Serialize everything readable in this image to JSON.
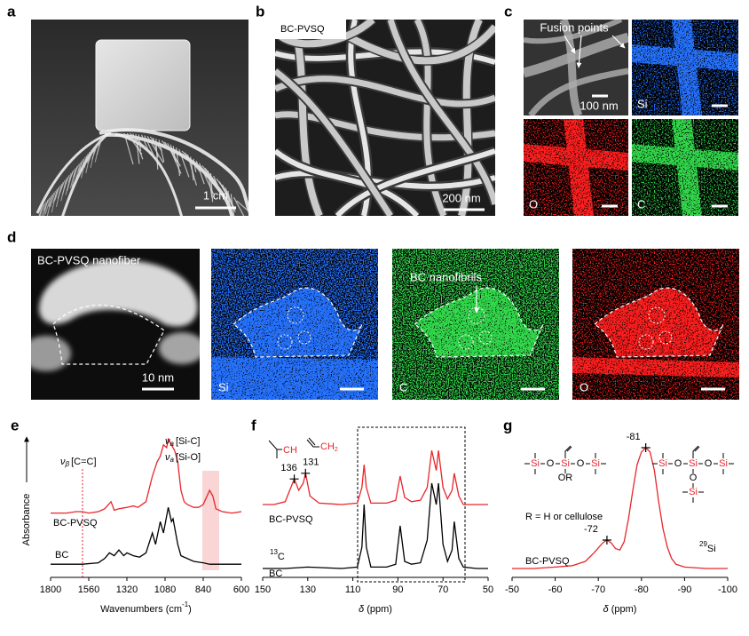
{
  "panels": {
    "a": {
      "letter": "a",
      "scale": "1 cm"
    },
    "b": {
      "letter": "b",
      "label": "BC-PVSQ",
      "scale": "200 nm"
    },
    "c": {
      "letter": "c",
      "annotation": "Fusion points",
      "scale": "100 nm",
      "maps": [
        "Si",
        "O",
        "C"
      ]
    },
    "d": {
      "letter": "d",
      "label": "BC-PVSQ nanofiber",
      "scale": "10 nm",
      "annotation": "BC nanofibrils",
      "maps": [
        "Si",
        "C",
        "O"
      ]
    }
  },
  "chart_data": [
    {
      "type": "line",
      "letter": "e",
      "y_label": "Absorbance",
      "x_label": {
        "pre": "Wavenumbers (cm",
        "sup": "-1",
        "post": ")"
      },
      "xlim": [
        1800,
        600
      ],
      "xticks": [
        1800,
        1560,
        1320,
        1080,
        840,
        600
      ],
      "ylim": [
        0,
        100
      ],
      "annotations": [
        {
          "symbol": "ν",
          "sub": "β",
          "text": "[C=C]"
        },
        {
          "symbol": "ν",
          "sub": "a",
          "text": "[Si-C]"
        },
        {
          "symbol": "ν",
          "sub": "a",
          "text": "[Si-O]"
        }
      ],
      "series": [
        {
          "name": "BC-PVSQ",
          "color": "#e8262b",
          "x": [
            1800,
            1700,
            1640,
            1600,
            1560,
            1500,
            1460,
            1420,
            1400,
            1370,
            1320,
            1280,
            1250,
            1200,
            1160,
            1130,
            1110,
            1090,
            1070,
            1060,
            1040,
            1020,
            1000,
            980,
            960,
            940,
            900,
            870,
            840,
            800,
            780,
            760,
            720,
            660,
            600
          ],
          "values": [
            44,
            44,
            45,
            45,
            44,
            45,
            47,
            52,
            46,
            47,
            48,
            49,
            48,
            52,
            70,
            80,
            84,
            92,
            90,
            96,
            92,
            88,
            80,
            60,
            52,
            50,
            48,
            48,
            50,
            60,
            56,
            47,
            45,
            44,
            45
          ]
        },
        {
          "name": "BC",
          "color": "#000000",
          "x": [
            1800,
            1700,
            1600,
            1500,
            1460,
            1430,
            1400,
            1370,
            1340,
            1320,
            1280,
            1240,
            1200,
            1160,
            1140,
            1110,
            1090,
            1060,
            1040,
            1030,
            1000,
            980,
            900,
            840,
            800,
            700,
            600
          ],
          "values": [
            8,
            8,
            8,
            9,
            12,
            16,
            14,
            18,
            14,
            16,
            14,
            13,
            16,
            30,
            22,
            38,
            30,
            48,
            38,
            40,
            22,
            14,
            10,
            9,
            8,
            8,
            8
          ]
        }
      ]
    },
    {
      "type": "line",
      "letter": "f",
      "x_label": {
        "italic": "δ",
        "text": " (ppm)"
      },
      "xlim": [
        150,
        50
      ],
      "xticks": [
        150,
        130,
        110,
        90,
        70,
        50
      ],
      "ylim": [
        0,
        100
      ],
      "groups": [
        {
          "text": "CH"
        },
        {
          "text": "CH",
          "sub": "2"
        }
      ],
      "nucleus": {
        "sup": "13",
        "text": "C"
      },
      "peak_labels": [
        136,
        131
      ],
      "series": [
        {
          "name": "BC-PVSQ",
          "color": "#e8262b",
          "x": [
            150,
            145,
            140,
            138,
            136,
            134,
            132,
            131,
            129,
            125,
            115,
            108,
            106,
            105,
            104,
            102,
            95,
            91,
            89,
            87,
            84,
            80,
            77,
            75,
            73,
            72,
            70,
            68,
            66,
            65,
            63,
            61,
            55,
            50
          ],
          "values": [
            50,
            50,
            52,
            60,
            68,
            60,
            65,
            72,
            56,
            51,
            50,
            51,
            62,
            78,
            62,
            51,
            51,
            53,
            70,
            55,
            52,
            53,
            62,
            88,
            74,
            88,
            62,
            54,
            60,
            72,
            56,
            50,
            50,
            50
          ]
        },
        {
          "name": "BC",
          "color": "#000000",
          "x": [
            150,
            140,
            130,
            115,
            108,
            106,
            105,
            104,
            102,
            95,
            91,
            89,
            87,
            84,
            80,
            77,
            75,
            73,
            72,
            70,
            68,
            66,
            65,
            63,
            61,
            55,
            50
          ],
          "values": [
            5,
            5,
            6,
            5,
            6,
            20,
            50,
            20,
            6,
            6,
            8,
            35,
            10,
            8,
            9,
            25,
            65,
            50,
            65,
            22,
            10,
            18,
            38,
            12,
            6,
            5,
            5
          ]
        }
      ]
    },
    {
      "type": "line",
      "letter": "g",
      "x_label": {
        "italic": "δ",
        "text": " (ppm)"
      },
      "xlim": [
        -50,
        -100
      ],
      "xticks": [
        -50,
        -60,
        -70,
        -80,
        -90,
        -100
      ],
      "ylim": [
        0,
        100
      ],
      "note": "R = H or cellulose",
      "nucleus": {
        "sup": "29",
        "text": "Si"
      },
      "structures": [
        {
          "chain": [
            "Si",
            "O",
            "Si",
            "O",
            "Si"
          ],
          "below": [
            "OR"
          ]
        },
        {
          "chain": [
            "Si",
            "O",
            "Si",
            "O",
            "Si"
          ],
          "below": [
            "O",
            "Si"
          ]
        }
      ],
      "peak_labels": [
        -81,
        -72
      ],
      "series": [
        {
          "name": "BC-PVSQ",
          "color": "#e8262b",
          "x": [
            -50,
            -55,
            -60,
            -64,
            -67,
            -69,
            -71,
            -72,
            -73,
            -74,
            -75,
            -76,
            -77,
            -78,
            -79,
            -80,
            -81,
            -82,
            -83,
            -84,
            -85,
            -86,
            -87,
            -88,
            -90,
            -95,
            -100
          ],
          "values": [
            5,
            5,
            6,
            7,
            10,
            16,
            23,
            25,
            23,
            19,
            18,
            24,
            40,
            60,
            78,
            87,
            90,
            87,
            74,
            52,
            33,
            20,
            12,
            8,
            6,
            5,
            5
          ]
        }
      ]
    }
  ]
}
